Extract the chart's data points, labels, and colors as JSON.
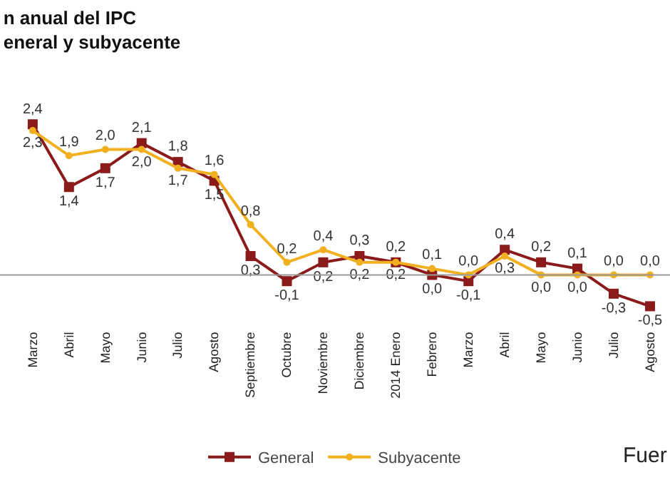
{
  "chart_data": {
    "type": "line",
    "title": "n anual del IPC\neneral y subyacente",
    "categories": [
      "Marzo",
      "Abril",
      "Mayo",
      "Junio",
      "Julio",
      "Agosto",
      "Septiembre",
      "Octubre",
      "Noviembre",
      "Diciembre",
      "2014 Enero",
      "Febrero",
      "Marzo",
      "Abril",
      "Mayo",
      "Junio",
      "Julio",
      "Agosto"
    ],
    "series": [
      {
        "name": "General",
        "color": "#8b1a1a",
        "marker": "square",
        "values": [
          2.4,
          1.4,
          1.7,
          2.1,
          1.8,
          1.5,
          0.3,
          -0.1,
          0.2,
          0.3,
          0.2,
          0.0,
          -0.1,
          0.4,
          0.2,
          0.1,
          -0.3,
          -0.5
        ],
        "value_labels": [
          "2,4",
          "1,4",
          "1,7",
          "2,1",
          "1,8",
          "1,5",
          "0,3",
          "-0,1",
          "0,2",
          "0,3",
          "0,2",
          "0,0",
          "-0,1",
          "0,4",
          "0,2",
          "0,1",
          "-0,3",
          "-0,5"
        ]
      },
      {
        "name": "Subyacente",
        "color": "#f0b020",
        "marker": "circle",
        "values": [
          2.3,
          1.9,
          2.0,
          2.0,
          1.7,
          1.6,
          0.8,
          0.2,
          0.4,
          0.2,
          0.2,
          0.1,
          0.0,
          0.3,
          0.0,
          0.0,
          0.0,
          0.0
        ],
        "value_labels": [
          "2,3",
          "1,9",
          "2,0",
          "2,0",
          "1,7",
          "1,6",
          "0,8",
          "0,2",
          "0,4",
          "0,2",
          "0,2",
          "0,1",
          "0,0",
          "0,3",
          "0,0",
          "0,0",
          "0,0",
          "0,0"
        ]
      }
    ],
    "ref_lines": [
      {
        "axis": "y",
        "value": 0,
        "color": "#999999"
      }
    ],
    "legend": "bottom",
    "grid": false,
    "line_style": "solid",
    "annotations": [
      {
        "text": "Fuer"
      }
    ]
  }
}
